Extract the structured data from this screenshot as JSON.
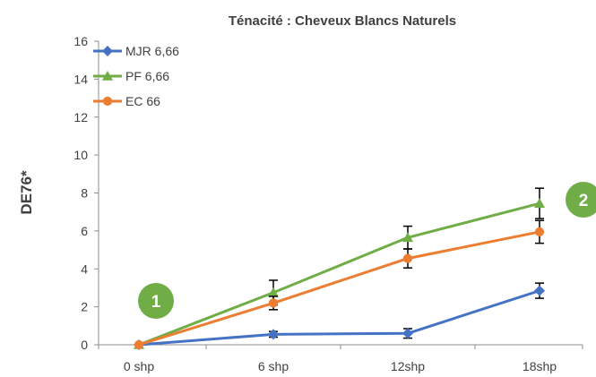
{
  "chart_data": {
    "type": "line",
    "title": "Ténacité : Cheveux Blancs Naturels",
    "xlabel": "",
    "ylabel": "DE76*",
    "categories": [
      "0 shp",
      "6 shp",
      "12shp",
      "18shp"
    ],
    "ylim": [
      0,
      16
    ],
    "yticks": [
      "0",
      "2",
      "4",
      "6",
      "8",
      "10",
      "12",
      "14",
      "16"
    ],
    "grid": false,
    "legend_position": "top-left",
    "series": [
      {
        "name": "MJR 6,66",
        "values": [
          0,
          0.55,
          0.6,
          2.85
        ],
        "errors": [
          0,
          0.15,
          0.25,
          0.4
        ],
        "color": "#4472C4",
        "marker": "diamond"
      },
      {
        "name": "PF 6,66",
        "values": [
          0,
          2.75,
          5.65,
          7.45
        ],
        "errors": [
          0,
          0.65,
          0.6,
          0.8
        ],
        "color": "#70AD47",
        "marker": "triangle"
      },
      {
        "name": "EC 66",
        "values": [
          0,
          2.2,
          4.55,
          5.95
        ],
        "errors": [
          0,
          0.35,
          0.5,
          0.6
        ],
        "color": "#ED7D31",
        "marker": "circle"
      }
    ],
    "annotations": [
      {
        "text": "1",
        "color": "#70AD47",
        "near": "0 shp"
      },
      {
        "text": "2",
        "color": "#70AD47",
        "near": "18shp"
      }
    ]
  }
}
